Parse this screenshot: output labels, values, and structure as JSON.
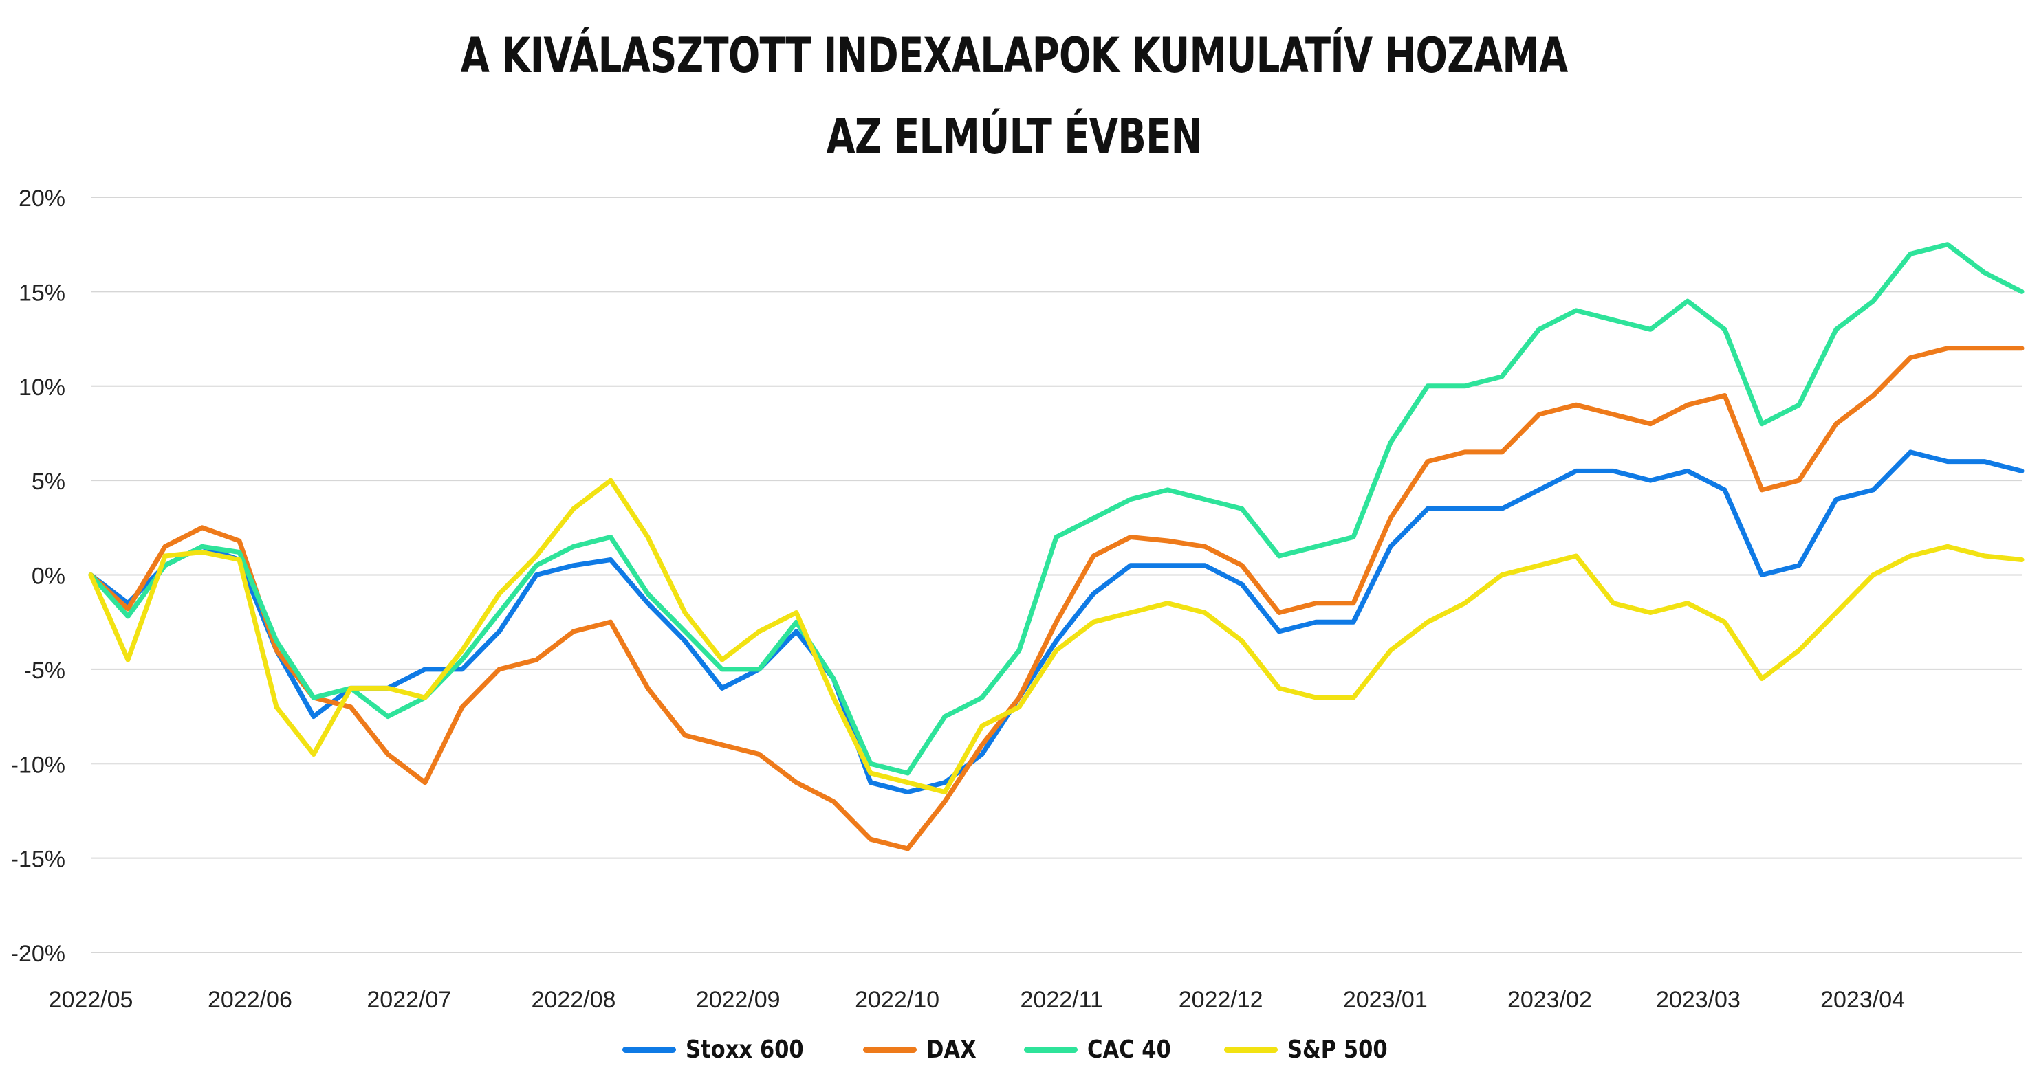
{
  "title_line1": "A KIVÁLASZTOTT INDEXALAPOK KUMULATÍV HOZAMA",
  "title_line2": "AZ ELMÚLT ÉVBEN",
  "legend": [
    {
      "label": "Stoxx 600",
      "color": "#0f7ae5"
    },
    {
      "label": "DAX",
      "color": "#ee7a1a"
    },
    {
      "label": "CAC 40",
      "color": "#2ee39a"
    },
    {
      "label": "S&P 500",
      "color": "#f2e212"
    }
  ],
  "chart_data": {
    "type": "line",
    "title": "A KIVÁLASZTOTT INDEXALAPOK KUMULATÍV HOZAMA AZ ELMÚLT ÉVBEN",
    "ylim": [
      -20,
      20
    ],
    "yticks": [
      "20%",
      "15%",
      "10%",
      "5%",
      "0%",
      "-5%",
      "-10%",
      "-15%",
      "-20%"
    ],
    "xticks": [
      "2022/05",
      "2022/06",
      "2022/07",
      "2022/08",
      "2022/09",
      "2022/10",
      "2022/11",
      "2022/12",
      "2023/01",
      "2023/02",
      "2023/03",
      "2023/04"
    ],
    "grid": true,
    "legend_position": "bottom",
    "x": [
      "2022-05-02",
      "2022-05-09",
      "2022-05-16",
      "2022-05-23",
      "2022-05-30",
      "2022-06-06",
      "2022-06-13",
      "2022-06-20",
      "2022-06-27",
      "2022-07-04",
      "2022-07-11",
      "2022-07-18",
      "2022-07-25",
      "2022-08-01",
      "2022-08-08",
      "2022-08-15",
      "2022-08-22",
      "2022-08-29",
      "2022-09-05",
      "2022-09-12",
      "2022-09-19",
      "2022-09-26",
      "2022-10-03",
      "2022-10-10",
      "2022-10-17",
      "2022-10-24",
      "2022-10-31",
      "2022-11-07",
      "2022-11-14",
      "2022-11-21",
      "2022-11-28",
      "2022-12-05",
      "2022-12-12",
      "2022-12-19",
      "2022-12-26",
      "2023-01-02",
      "2023-01-09",
      "2023-01-16",
      "2023-01-23",
      "2023-01-30",
      "2023-02-06",
      "2023-02-13",
      "2023-02-20",
      "2023-02-27",
      "2023-03-06",
      "2023-03-13",
      "2023-03-20",
      "2023-03-27",
      "2023-04-03",
      "2023-04-10",
      "2023-04-17",
      "2023-04-24",
      "2023-05-01"
    ],
    "series": [
      {
        "name": "Stoxx 600",
        "color": "#0f7ae5",
        "values": [
          0,
          -1.5,
          0.5,
          1.5,
          0.8,
          -4,
          -7.5,
          -6,
          -6,
          -5,
          -5,
          -3,
          0,
          0.5,
          0.8,
          -1.5,
          -3.5,
          -6,
          -5,
          -3,
          -5.5,
          -11,
          -11.5,
          -11,
          -9.5,
          -6.5,
          -3.5,
          -1,
          0.5,
          0.5,
          0.5,
          -0.5,
          -3,
          -2.5,
          -2.5,
          1.5,
          3.5,
          3.5,
          3.5,
          4.5,
          5.5,
          5.5,
          5,
          5.5,
          4.5,
          0,
          0.5,
          4,
          4.5,
          6.5,
          6,
          6,
          5.5
        ]
      },
      {
        "name": "DAX",
        "color": "#ee7a1a",
        "values": [
          0,
          -1.8,
          1.5,
          2.5,
          1.8,
          -4,
          -6.5,
          -7,
          -9.5,
          -11,
          -7,
          -5,
          -4.5,
          -3,
          -2.5,
          -6,
          -8.5,
          -9,
          -9.5,
          -11,
          -12,
          -14,
          -14.5,
          -12,
          -9,
          -6.5,
          -2.5,
          1,
          2,
          1.8,
          1.5,
          0.5,
          -2,
          -1.5,
          -1.5,
          3,
          6,
          6.5,
          6.5,
          8.5,
          9,
          8.5,
          8,
          9,
          9.5,
          4.5,
          5,
          8,
          9.5,
          11.5,
          12,
          12,
          12
        ]
      },
      {
        "name": "CAC 40",
        "color": "#2ee39a",
        "values": [
          0,
          -2.2,
          0.5,
          1.5,
          1.2,
          -3.5,
          -6.5,
          -6,
          -7.5,
          -6.5,
          -4.5,
          -2,
          0.5,
          1.5,
          2,
          -1,
          -3,
          -5,
          -5,
          -2.5,
          -5.5,
          -10,
          -10.5,
          -7.5,
          -6.5,
          -4,
          2,
          3,
          4,
          4.5,
          4,
          3.5,
          1,
          1.5,
          2,
          7,
          10,
          10,
          10.5,
          13,
          14,
          13.5,
          13,
          14.5,
          13,
          8,
          9,
          13,
          14.5,
          17,
          17.5,
          16,
          15
        ]
      },
      {
        "name": "S&P 500",
        "color": "#f2e212",
        "values": [
          0,
          -4.5,
          1,
          1.2,
          0.8,
          -7,
          -9.5,
          -6,
          -6,
          -6.5,
          -4,
          -1,
          1,
          3.5,
          5,
          2,
          -2,
          -4.5,
          -3,
          -2,
          -6.5,
          -10.5,
          -11,
          -11.5,
          -8,
          -7,
          -4,
          -2.5,
          -2,
          -1.5,
          -2,
          -3.5,
          -6,
          -6.5,
          -6.5,
          -4,
          -2.5,
          -1.5,
          0,
          0.5,
          1,
          -1.5,
          -2,
          -1.5,
          -2.5,
          -5.5,
          -4,
          -2,
          0,
          1,
          1.5,
          1,
          0.8
        ]
      }
    ]
  }
}
